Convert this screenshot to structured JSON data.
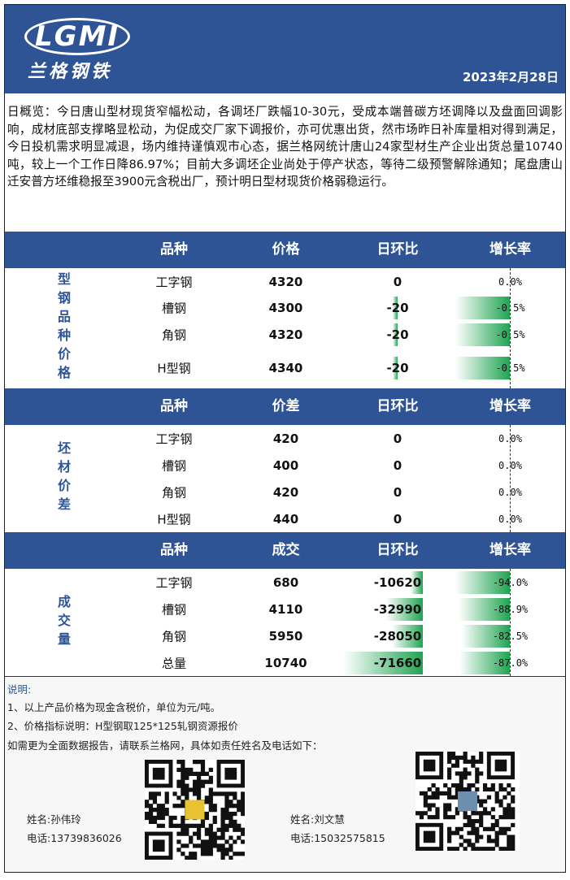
{
  "header": {
    "logo": "LGMI",
    "brand": "兰格钢铁",
    "date": "2023年2月28日"
  },
  "summary": "日概览：今日唐山型材现货窄幅松动，各调坯厂跌幅10-30元，受成本端普碳方坯调降以及盘面回调影响，成材底部支撑略显松动，为促成交厂家下调报价，亦可优惠出货，然市场昨日补库量相对得到满足，今日投机需求明显减退，场内维持谨慎观市心态，据兰格网统计唐山24家型材生产企业出货总量10740吨，较上一个工作日降86.97%；目前大多调坯企业尚处于停产状态，等待二级预警解除通知；尾盘唐山迁安普方坯维稳报至3900元含税出厂，预计明日型材现货价格弱稳运行。",
  "sections": [
    {
      "label": "型钢品种价格",
      "columns": [
        "品种",
        "价格",
        "日环比",
        "增长率"
      ],
      "rows": [
        {
          "name": "工字钢",
          "value": 4320,
          "change": 0,
          "growth": 0,
          "growth_label": "0.0%"
        },
        {
          "name": "槽钢",
          "value": 4300,
          "change": -20,
          "growth": -0.5,
          "growth_label": "-0.5%"
        },
        {
          "name": "角钢",
          "value": 4320,
          "change": -20,
          "growth": -0.5,
          "growth_label": "-0.5%"
        },
        {
          "name": "H型钢",
          "value": 4340,
          "change": -20,
          "growth": -0.5,
          "growth_label": "-0.5%"
        }
      ]
    },
    {
      "label": "坯材价差",
      "columns": [
        "品种",
        "价差",
        "日环比",
        "增长率"
      ],
      "rows": [
        {
          "name": "工字钢",
          "value": 420,
          "change": 0,
          "growth": 0,
          "growth_label": "0.0%"
        },
        {
          "name": "槽钢",
          "value": 400,
          "change": 0,
          "growth": 0,
          "growth_label": "0.0%"
        },
        {
          "name": "角钢",
          "value": 420,
          "change": 0,
          "growth": 0,
          "growth_label": "0.0%"
        },
        {
          "name": "H型钢",
          "value": 440,
          "change": 0,
          "growth": 0,
          "growth_label": "0.0%"
        }
      ]
    },
    {
      "label": "成交量",
      "columns": [
        "品种",
        "成交",
        "日环比",
        "增长率"
      ],
      "rows": [
        {
          "name": "工字钢",
          "value": 680,
          "change": -10620,
          "growth": -94.0,
          "growth_label": "-94.0%"
        },
        {
          "name": "槽钢",
          "value": 4110,
          "change": -32990,
          "growth": -88.9,
          "growth_label": "-88.9%"
        },
        {
          "name": "角钢",
          "value": 5950,
          "change": -28050,
          "growth": -82.5,
          "growth_label": "-82.5%"
        },
        {
          "name": "总量",
          "value": 10740,
          "change": -71660,
          "growth": -87.0,
          "growth_label": "-87.0%"
        }
      ]
    }
  ],
  "notes": {
    "title": "说明:",
    "lines": [
      "1、以上产品价格为现金含税价，单位为元/吨。",
      "2、价格指标说明：H型钢取125*125轧钢资源报价",
      "如需更为全面数据报告，请联系兰格网，具体如责任姓名及电话如下："
    ]
  },
  "contacts": [
    {
      "name": "姓名:孙伟玲",
      "phone": "电话:13739836026"
    },
    {
      "name": "姓名:刘文慧",
      "phone": "电话:15032575815"
    }
  ]
}
